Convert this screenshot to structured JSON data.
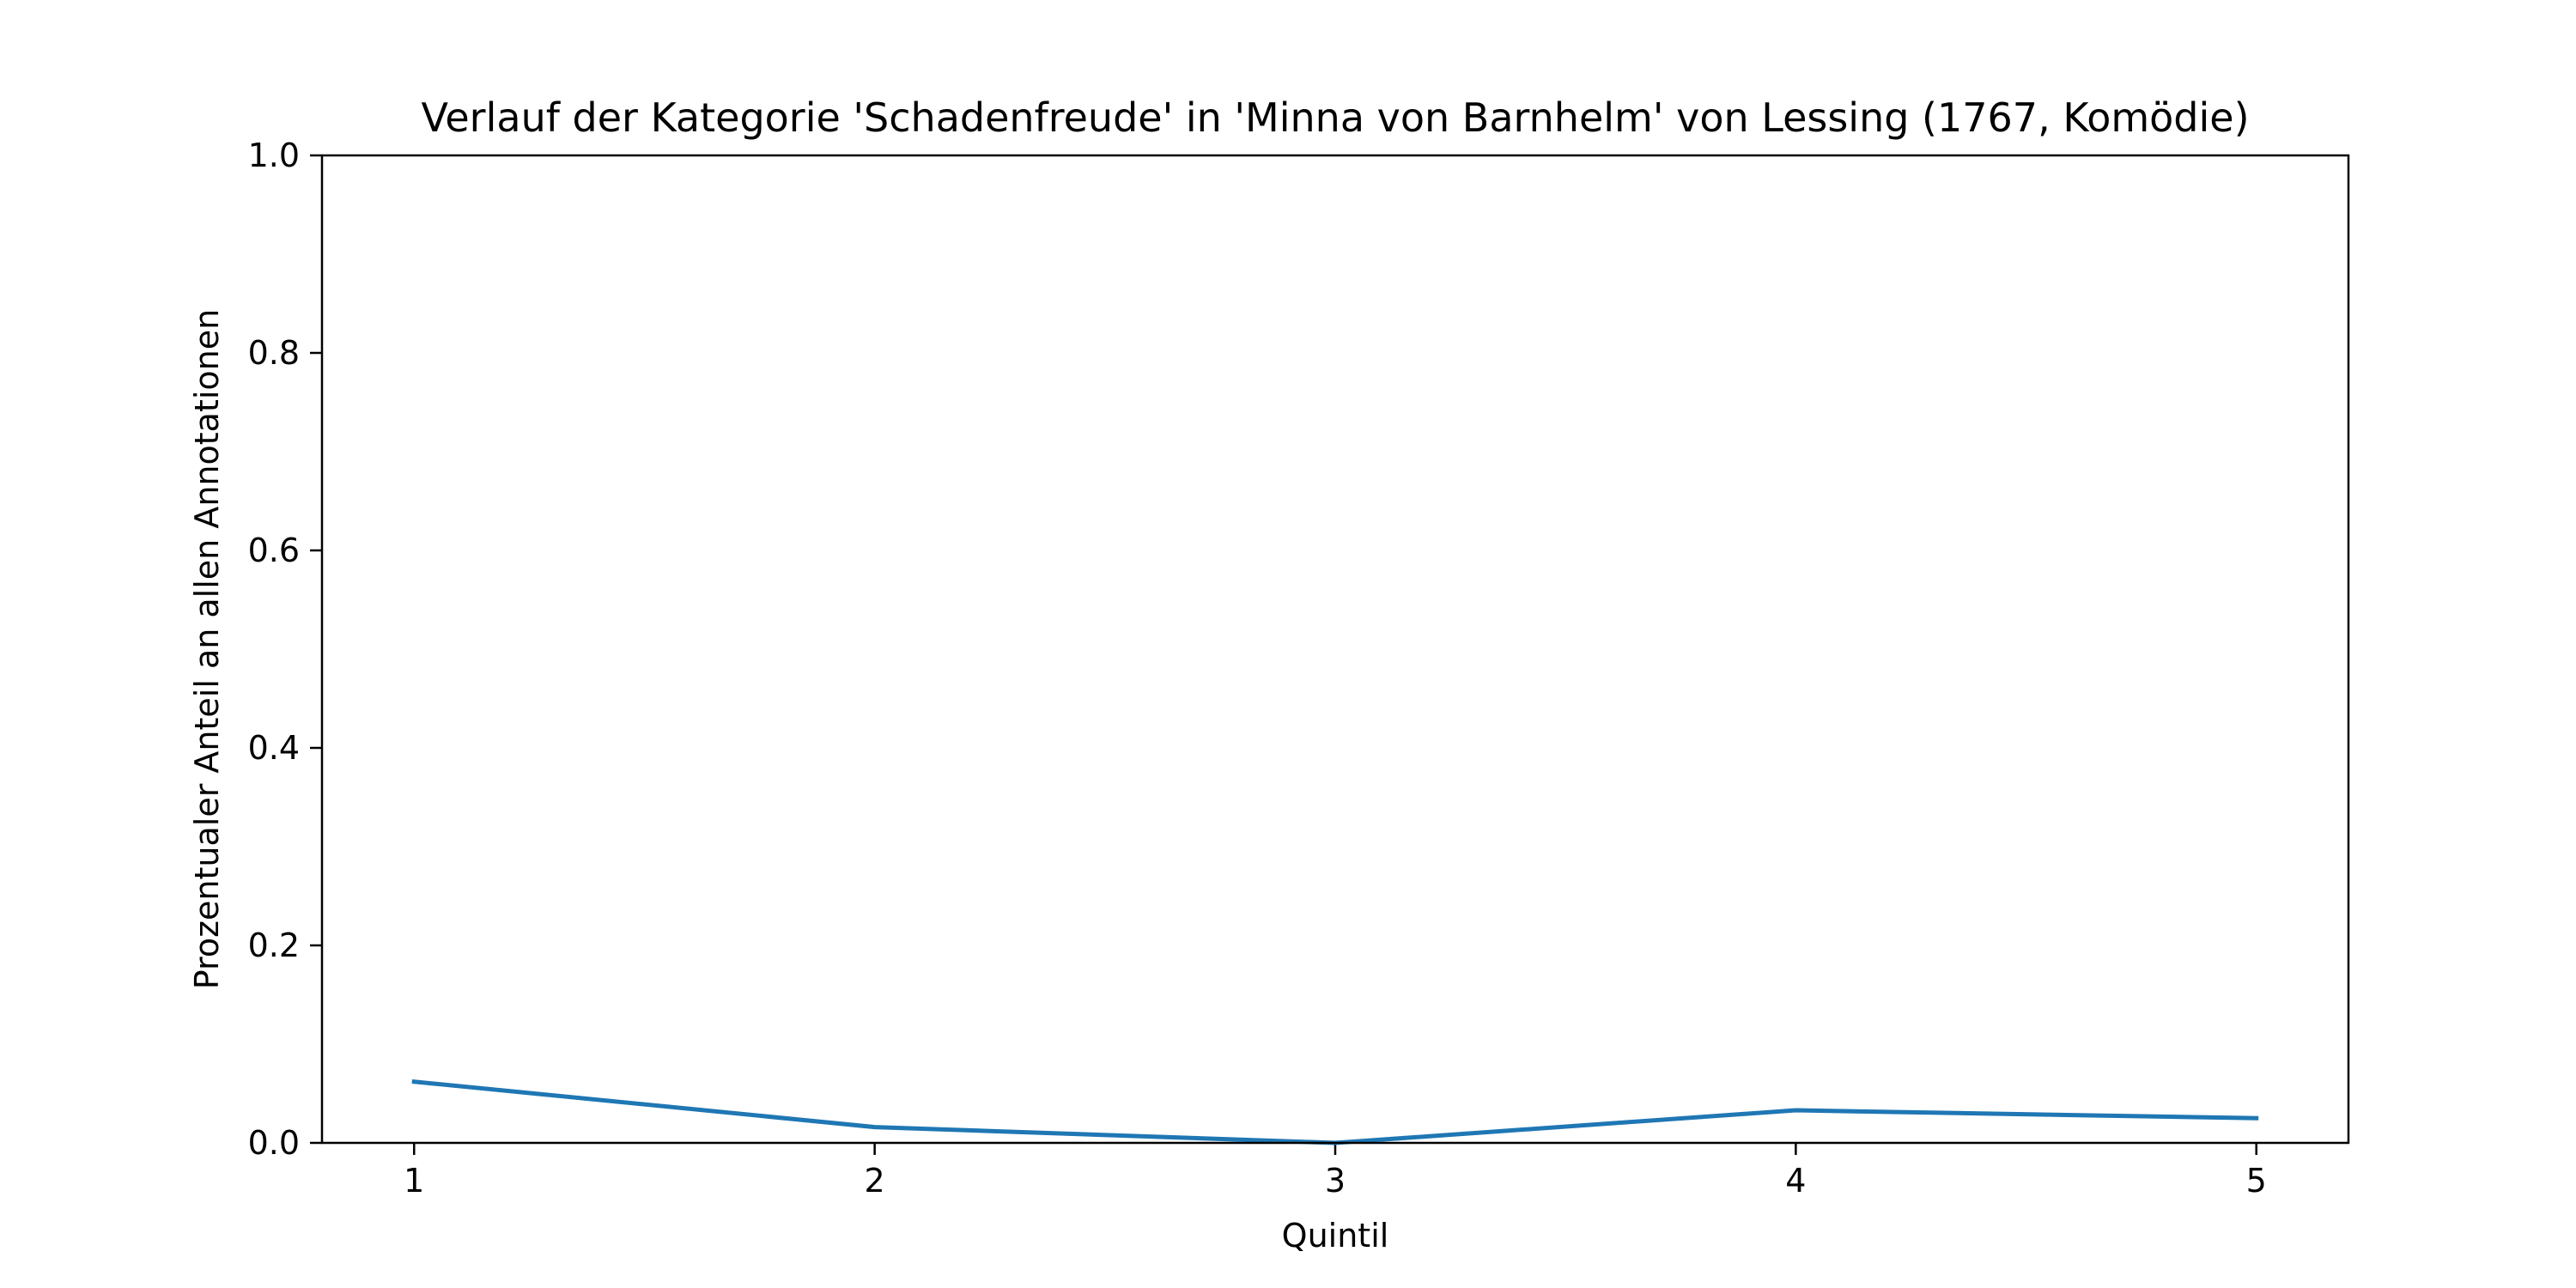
{
  "chart_data": {
    "type": "line",
    "title": "Verlauf der Kategorie 'Schadenfreude' in 'Minna von Barnhelm' von Lessing (1767, Komödie)",
    "xlabel": "Quintil",
    "ylabel": "Prozentualer Anteil an allen Annotationen",
    "x": [
      1,
      2,
      3,
      4,
      5
    ],
    "xticks": [
      "1",
      "2",
      "3",
      "4",
      "5"
    ],
    "xlim": [
      0.8,
      5.2
    ],
    "ylim": [
      0,
      1
    ],
    "yticks": [
      "0.0",
      "0.2",
      "0.4",
      "0.6",
      "0.8",
      "1.0"
    ],
    "series": [
      {
        "values": [
          0.062,
          0.016,
          0.0,
          0.033,
          0.025
        ],
        "color": "#1f77b4"
      }
    ],
    "grid": false,
    "legend": "none"
  }
}
